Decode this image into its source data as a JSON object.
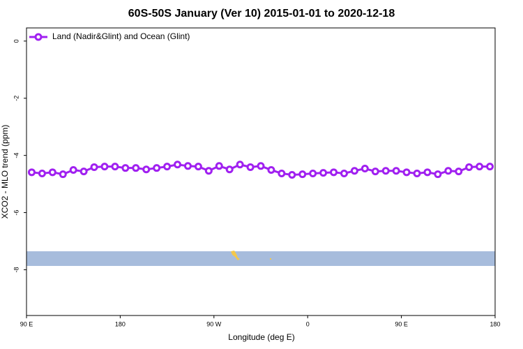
{
  "chart_data": {
    "type": "line",
    "title": "60S-50S January (Ver 10)   2015-01-01 to 2020-12-18",
    "xlabel": "Longitude (deg E)",
    "ylabel": "XCO2 - MLO trend (ppm)",
    "x": [
      95,
      105,
      115,
      125,
      135,
      145,
      155,
      165,
      175,
      185,
      195,
      205,
      215,
      225,
      235,
      245,
      255,
      265,
      275,
      285,
      295,
      305,
      315,
      325,
      335,
      345,
      355,
      365,
      375,
      385,
      395,
      405,
      415,
      425,
      435,
      445,
      455,
      465,
      475,
      485,
      495,
      505,
      515,
      525,
      535
    ],
    "series": [
      {
        "name": "Land (Nadir&Glint) and Ocean (Glint)",
        "color": "#a020f0",
        "values": [
          -4.59,
          -4.63,
          -4.59,
          -4.66,
          -4.51,
          -4.56,
          -4.41,
          -4.39,
          -4.39,
          -4.44,
          -4.44,
          -4.49,
          -4.44,
          -4.39,
          -4.32,
          -4.37,
          -4.39,
          -4.54,
          -4.37,
          -4.49,
          -4.32,
          -4.41,
          -4.37,
          -4.51,
          -4.63,
          -4.68,
          -4.66,
          -4.63,
          -4.61,
          -4.59,
          -4.63,
          -4.54,
          -4.46,
          -4.56,
          -4.54,
          -4.54,
          -4.59,
          -4.63,
          -4.59,
          -4.66,
          -4.54,
          -4.56,
          -4.41,
          -4.39,
          -4.39
        ]
      }
    ],
    "xlim": [
      90,
      540
    ],
    "xticks": [
      {
        "value": 90,
        "label": "90 E"
      },
      180,
      {
        "value": 270,
        "label": "90 W"
      },
      {
        "value": 360,
        "label": "0"
      },
      {
        "value": 450,
        "label": "90 E"
      },
      {
        "value": 540,
        "label": "180"
      }
    ],
    "ylim": [
      -9.6,
      0.46
    ],
    "yticks": [
      -8,
      -6,
      -4,
      -2,
      0
    ],
    "legend": "top-left"
  }
}
